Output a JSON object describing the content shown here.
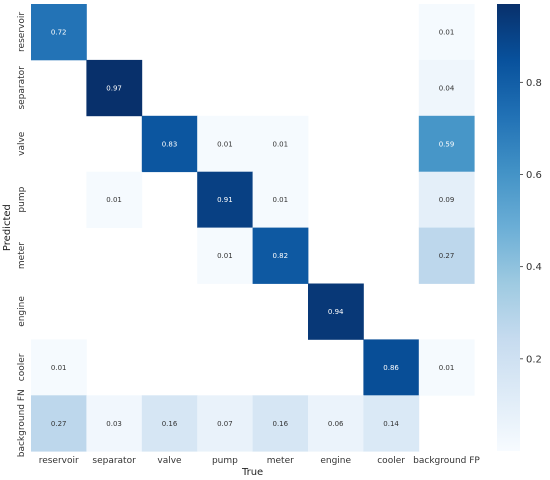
{
  "chart_data": {
    "type": "heatmap",
    "title": "",
    "xlabel": "True",
    "ylabel": "Predicted",
    "x_categories": [
      "reservoir",
      "separator",
      "valve",
      "pump",
      "meter",
      "engine",
      "cooler",
      "background FP"
    ],
    "y_categories": [
      "reservoir",
      "separator",
      "valve",
      "pump",
      "meter",
      "engine",
      "cooler",
      "background FN"
    ],
    "values": [
      [
        0.72,
        null,
        null,
        null,
        null,
        null,
        null,
        0.01
      ],
      [
        null,
        0.97,
        null,
        null,
        null,
        null,
        null,
        0.04
      ],
      [
        null,
        null,
        0.83,
        0.01,
        0.01,
        null,
        null,
        0.59
      ],
      [
        null,
        0.01,
        null,
        0.91,
        0.01,
        null,
        null,
        0.09
      ],
      [
        null,
        null,
        null,
        0.01,
        0.82,
        null,
        null,
        0.27
      ],
      [
        null,
        null,
        null,
        null,
        null,
        0.94,
        null,
        null
      ],
      [
        0.01,
        null,
        null,
        null,
        null,
        null,
        0.86,
        0.01
      ],
      [
        0.27,
        0.03,
        0.16,
        0.07,
        0.16,
        0.06,
        0.14,
        null
      ]
    ],
    "colorbar": {
      "colormap": "Blues",
      "range": [
        0,
        0.97
      ],
      "ticks": [
        0.2,
        0.4,
        0.6,
        0.8
      ]
    }
  }
}
